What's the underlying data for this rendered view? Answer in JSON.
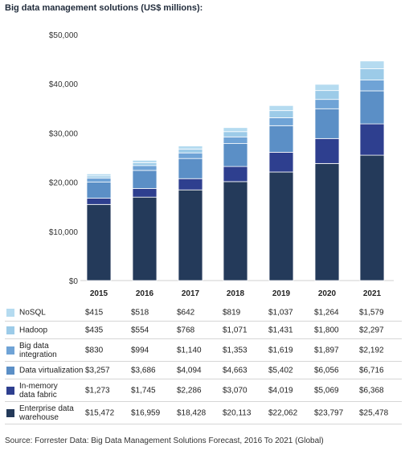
{
  "chart_data": {
    "type": "bar",
    "stacked": true,
    "title": "Big data management solutions (US$ millions):",
    "categories": [
      "2015",
      "2016",
      "2017",
      "2018",
      "2019",
      "2020",
      "2021"
    ],
    "yticks": [
      "$0",
      "$10,000",
      "$20,000",
      "$30,000",
      "$40,000",
      "$50,000"
    ],
    "ylim": [
      0,
      50000
    ],
    "grid": false,
    "series": [
      {
        "name": "Enterprise data warehouse",
        "color": "#243a5a",
        "values": [
          15472,
          16959,
          18428,
          20113,
          22062,
          23797,
          25478
        ],
        "labels": [
          "$15,472",
          "$16,959",
          "$18,428",
          "$20,113",
          "$22,062",
          "$23,797",
          "$25,478"
        ]
      },
      {
        "name": "In-memory data fabric",
        "color": "#2e3f8f",
        "values": [
          1273,
          1745,
          2286,
          3070,
          4019,
          5069,
          6368
        ],
        "labels": [
          "$1,273",
          "$1,745",
          "$2,286",
          "$3,070",
          "$4,019",
          "$5,069",
          "$6,368"
        ]
      },
      {
        "name": "Data virtualization",
        "color": "#5b8fc6",
        "values": [
          3257,
          3686,
          4094,
          4663,
          5402,
          6056,
          6716
        ],
        "labels": [
          "$3,257",
          "$3,686",
          "$4,094",
          "$4,663",
          "$5,402",
          "$6,056",
          "$6,716"
        ]
      },
      {
        "name": "Big data integration",
        "color": "#6fa3d6",
        "values": [
          830,
          994,
          1140,
          1353,
          1619,
          1897,
          2192
        ],
        "labels": [
          "$830",
          "$994",
          "$1,140",
          "$1,353",
          "$1,619",
          "$1,897",
          "$2,192"
        ]
      },
      {
        "name": "Hadoop",
        "color": "#9ccbe8",
        "values": [
          435,
          554,
          768,
          1071,
          1431,
          1800,
          2297
        ],
        "labels": [
          "$435",
          "$554",
          "$768",
          "$1,071",
          "$1,431",
          "$1,800",
          "$2,297"
        ]
      },
      {
        "name": "NoSQL",
        "color": "#b5dbf0",
        "values": [
          415,
          518,
          642,
          819,
          1037,
          1264,
          1579
        ],
        "labels": [
          "$415",
          "$518",
          "$642",
          "$819",
          "$1,037",
          "$1,264",
          "$1,579"
        ]
      }
    ],
    "table_rows": [
      {
        "series": 5,
        "label_lines": [
          "NoSQL"
        ]
      },
      {
        "series": 4,
        "label_lines": [
          "Hadoop"
        ]
      },
      {
        "series": 3,
        "label_lines": [
          "Big data",
          "integration"
        ]
      },
      {
        "series": 2,
        "label_lines": [
          "Data virtualization"
        ]
      },
      {
        "series": 1,
        "label_lines": [
          "In-memory",
          "data fabric"
        ]
      },
      {
        "series": 0,
        "label_lines": [
          "Enterprise data",
          "warehouse"
        ]
      }
    ],
    "source": "Source: Forrester Data: Big Data Management Solutions Forecast, 2016 To 2021 (Global)"
  }
}
